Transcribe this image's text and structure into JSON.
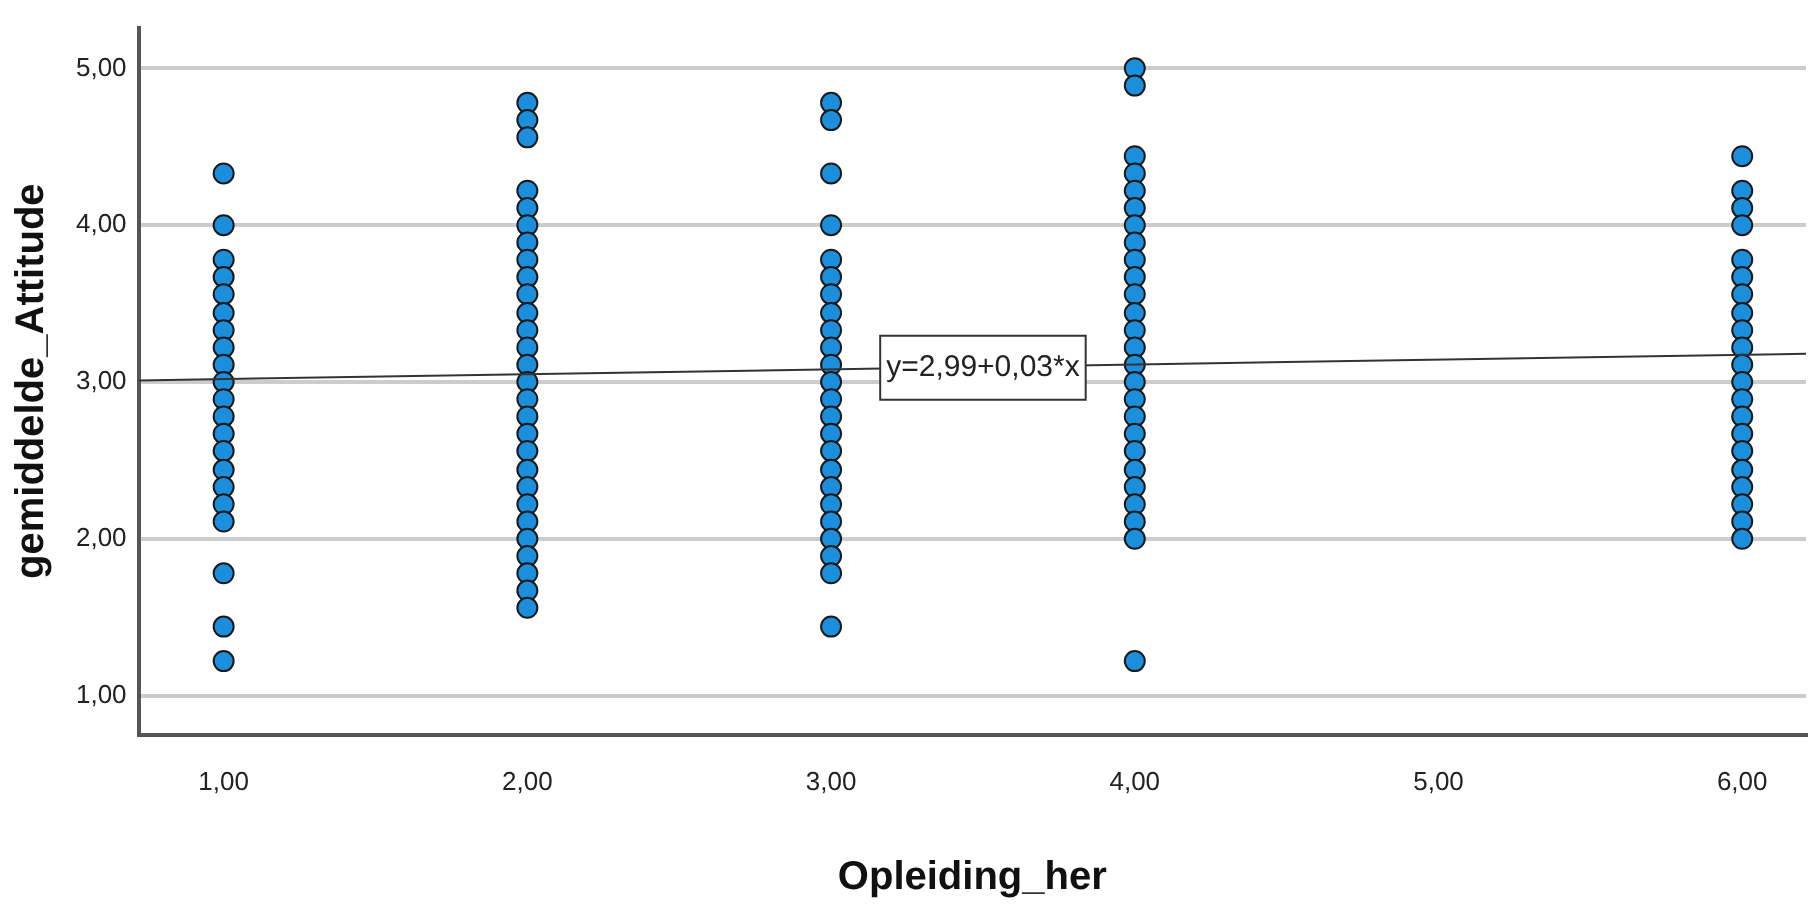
{
  "chart_data": {
    "type": "scatter",
    "xlabel": "Opleiding_her",
    "ylabel": "gemiddelde_Attitude",
    "xlim": [
      0.72,
      6.21
    ],
    "ylim": [
      0.75,
      5.26
    ],
    "xticks": [
      {
        "value": 1,
        "label": "1,00"
      },
      {
        "value": 2,
        "label": "2,00"
      },
      {
        "value": 3,
        "label": "3,00"
      },
      {
        "value": 4,
        "label": "4,00"
      },
      {
        "value": 5,
        "label": "5,00"
      },
      {
        "value": 6,
        "label": "6,00"
      }
    ],
    "yticks": [
      {
        "value": 1,
        "label": "1,00"
      },
      {
        "value": 2,
        "label": "2,00"
      },
      {
        "value": 3,
        "label": "3,00"
      },
      {
        "value": 4,
        "label": "4,00"
      },
      {
        "value": 5,
        "label": "5,00"
      }
    ],
    "grid": "y",
    "legend": false,
    "marker": "circle",
    "annotations": [
      {
        "text": "y=2,99+0,03*x",
        "x": 3.5,
        "y": 3.09
      }
    ],
    "series": [
      {
        "color": "#1c8fdc",
        "x": [
          1,
          1,
          1,
          1,
          1,
          1,
          1,
          1,
          1,
          1,
          1,
          1,
          1,
          1,
          1,
          1,
          1,
          1,
          1,
          1,
          1
        ],
        "values": [
          4.33,
          4.0,
          3.78,
          3.67,
          3.56,
          3.44,
          3.33,
          3.22,
          3.11,
          3.0,
          2.89,
          2.78,
          2.67,
          2.56,
          2.44,
          2.33,
          2.22,
          2.11,
          1.78,
          1.44,
          1.22
        ]
      },
      {
        "color": "#1c8fdc",
        "x": [
          2,
          2,
          2,
          2,
          2,
          2,
          2,
          2,
          2,
          2,
          2,
          2,
          2,
          2,
          2,
          2,
          2,
          2,
          2,
          2,
          2,
          2,
          2,
          2,
          2,
          2,
          2,
          2
        ],
        "values": [
          4.78,
          4.67,
          4.56,
          4.22,
          4.11,
          4.0,
          3.89,
          3.78,
          3.67,
          3.56,
          3.44,
          3.33,
          3.22,
          3.11,
          3.0,
          2.89,
          2.78,
          2.67,
          2.56,
          2.44,
          2.33,
          2.22,
          2.11,
          2.0,
          1.89,
          1.78,
          1.67,
          1.56
        ]
      },
      {
        "color": "#1c8fdc",
        "x": [
          3,
          3,
          3,
          3,
          3,
          3,
          3,
          3,
          3,
          3,
          3,
          3,
          3,
          3,
          3,
          3,
          3,
          3,
          3,
          3,
          3,
          3,
          3,
          3
        ],
        "values": [
          4.78,
          4.67,
          4.33,
          4.0,
          3.78,
          3.67,
          3.56,
          3.44,
          3.33,
          3.22,
          3.11,
          3.0,
          2.89,
          2.78,
          2.67,
          2.56,
          2.44,
          2.33,
          2.22,
          2.11,
          2.0,
          1.89,
          1.78,
          1.44
        ]
      },
      {
        "color": "#1c8fdc",
        "x": [
          4,
          4,
          4,
          4,
          4,
          4,
          4,
          4,
          4,
          4,
          4,
          4,
          4,
          4,
          4,
          4,
          4,
          4,
          4,
          4,
          4,
          4,
          4,
          4,
          4,
          4
        ],
        "values": [
          5.0,
          4.89,
          4.44,
          4.33,
          4.22,
          4.11,
          4.0,
          3.89,
          3.78,
          3.67,
          3.56,
          3.44,
          3.33,
          3.22,
          3.11,
          3.0,
          2.89,
          2.78,
          2.67,
          2.56,
          2.44,
          2.33,
          2.22,
          2.11,
          2.0,
          1.22
        ]
      },
      {
        "color": "#1c8fdc",
        "x": [
          6,
          6,
          6,
          6,
          6,
          6,
          6,
          6,
          6,
          6,
          6,
          6,
          6,
          6,
          6,
          6,
          6,
          6,
          6,
          6,
          6
        ],
        "values": [
          4.44,
          4.22,
          4.11,
          4.0,
          3.78,
          3.67,
          3.56,
          3.44,
          3.33,
          3.22,
          3.11,
          3.0,
          2.89,
          2.78,
          2.67,
          2.56,
          2.44,
          2.33,
          2.22,
          2.11,
          2.0
        ]
      },
      {
        "type": "line",
        "color": "#333333",
        "marker": "none",
        "x": [
          0.72,
          6.21
        ],
        "values": [
          3.01,
          3.18
        ]
      }
    ]
  }
}
